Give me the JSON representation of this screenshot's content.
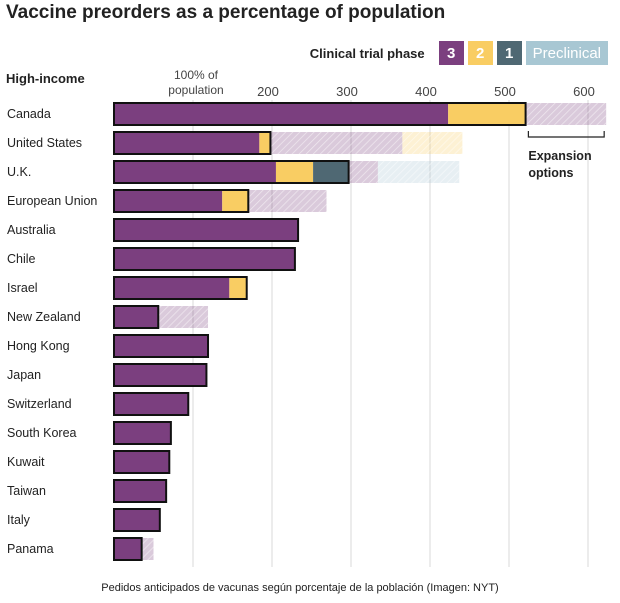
{
  "title": "Vaccine preorders as a percentage of population",
  "legend": {
    "title": "Clinical trial phase",
    "items": [
      {
        "key": "p3",
        "label": "3",
        "color": "#7b3f7f"
      },
      {
        "key": "p2",
        "label": "2",
        "color": "#f9cd63"
      },
      {
        "key": "p1",
        "label": "1",
        "color": "#4f6873"
      },
      {
        "key": "pre",
        "label": "Preclinical",
        "color": "#a8c7d3"
      }
    ]
  },
  "group_label": "High-income",
  "axis_label": [
    "100% of",
    "population"
  ],
  "expansion_label": [
    "Expansion",
    "options"
  ],
  "caption": "Pedidos anticipados de vacunas según porcentaje de la población (Imagen: NYT)",
  "chart_data": {
    "type": "bar",
    "orientation": "horizontal",
    "stacked": true,
    "xlim": [
      0,
      620
    ],
    "x_ticks": [
      100,
      200,
      300,
      400,
      500,
      600
    ],
    "x_tick_labels": [
      "",
      "200",
      "300",
      "400",
      "500",
      "600"
    ],
    "grid": true,
    "legend_position": "top-right",
    "unit": "% of population",
    "categories": [
      "Canada",
      "United States",
      "U.K.",
      "European Union",
      "Australia",
      "Chile",
      "Israel",
      "New Zealand",
      "Hong Kong",
      "Japan",
      "Switzerland",
      "South Korea",
      "Kuwait",
      "Taiwan",
      "Italy",
      "Panama"
    ],
    "series": [
      {
        "name": "3",
        "key": "p3",
        "values": [
          423,
          184,
          205,
          137,
          233,
          229,
          146,
          56,
          119,
          117,
          94,
          72,
          70,
          66,
          58,
          35
        ]
      },
      {
        "name": "2",
        "key": "p2",
        "values": [
          98,
          14,
          47,
          33,
          0,
          0,
          22,
          0,
          0,
          0,
          0,
          0,
          0,
          0,
          0,
          0
        ]
      },
      {
        "name": "1",
        "key": "p1",
        "values": [
          0,
          0,
          45,
          0,
          0,
          0,
          0,
          0,
          0,
          0,
          0,
          0,
          0,
          0,
          0,
          0
        ]
      },
      {
        "name": "Preclinical",
        "key": "pre",
        "values": [
          0,
          0,
          0,
          0,
          0,
          0,
          0,
          0,
          0,
          0,
          0,
          0,
          0,
          0,
          0,
          0
        ]
      }
    ],
    "expansion_options": [
      {
        "country": "Canada",
        "segments": [
          {
            "key": "p3",
            "value": 102
          }
        ]
      },
      {
        "country": "United States",
        "segments": [
          {
            "key": "p3",
            "value": 167
          },
          {
            "key": "p2",
            "value": 76
          }
        ]
      },
      {
        "country": "U.K.",
        "segments": [
          {
            "key": "p3",
            "value": 37
          },
          {
            "key": "pre",
            "value": 103
          }
        ]
      },
      {
        "country": "European Union",
        "segments": [
          {
            "key": "p3",
            "value": 99
          }
        ]
      },
      {
        "country": "New Zealand",
        "segments": [
          {
            "key": "p3",
            "value": 63
          }
        ]
      },
      {
        "country": "Panama",
        "segments": [
          {
            "key": "p3",
            "value": 15
          }
        ]
      }
    ]
  }
}
